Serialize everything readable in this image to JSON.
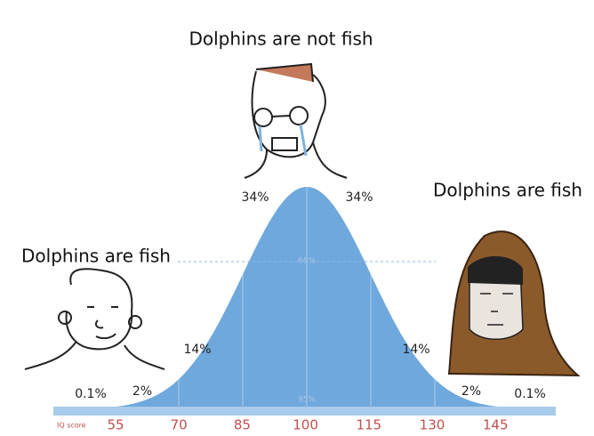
{
  "captions": {
    "middle": "Dolphins are not fish",
    "left": "Dolphins are fish",
    "right": "Dolphins are fish"
  },
  "curve": {
    "labels": {
      "left_tail": "0.1%",
      "left_2": "2%",
      "left_14": "14%",
      "left_34": "34%",
      "right_34": "34%",
      "right_14": "14%",
      "right_2": "2%",
      "right_tail": "0.1%",
      "inner": "68%",
      "outer": "95%"
    },
    "axis_label": "IQ score",
    "ticks": [
      55,
      70,
      85,
      100,
      115,
      130,
      145
    ]
  }
}
